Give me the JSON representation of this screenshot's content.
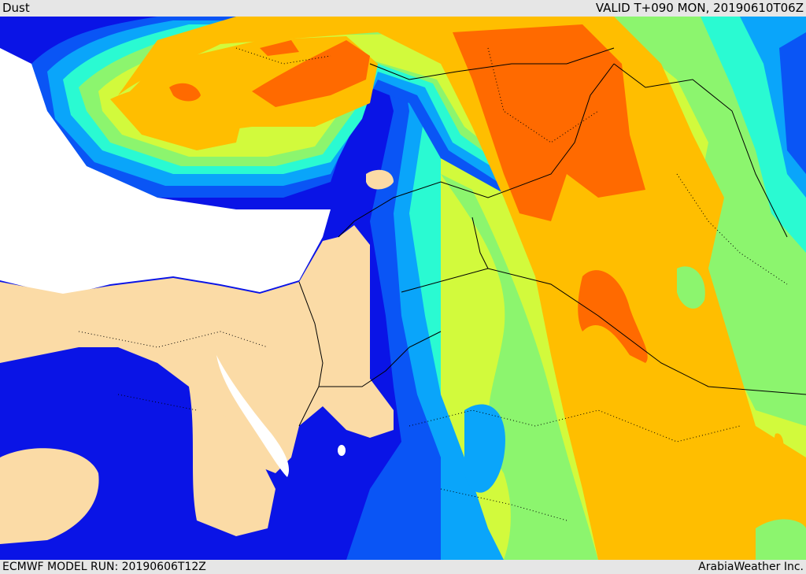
{
  "header": {
    "title": "Dust",
    "valid_time": "VALID T+090 MON, 20190610T06Z"
  },
  "footer": {
    "model_run": "ECMWF MODEL RUN: 20190606T12Z",
    "credit": "ArabiaWeather Inc."
  },
  "map": {
    "field": "Dust",
    "colors": {
      "land_no_dust": "#fbdba6",
      "sea_no_dust": "#ffffff",
      "level_1": "#0a14e6",
      "level_2": "#0a55f5",
      "level_3": "#0aa5fa",
      "level_4": "#2afad2",
      "level_5": "#8cf56e",
      "level_6": "#d2fa3c",
      "level_7": "#ffbe00",
      "level_8": "#ff6a00"
    }
  }
}
